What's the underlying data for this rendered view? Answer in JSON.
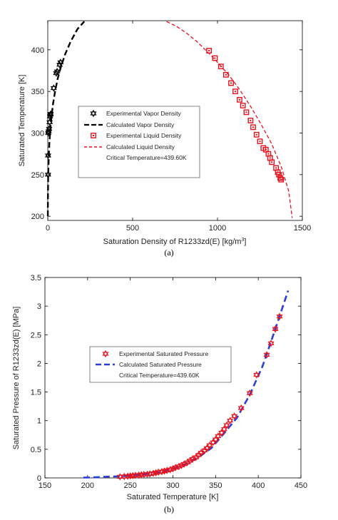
{
  "chart_data": [
    {
      "type": "scatter",
      "caption": "(a)",
      "xlabel": "Saturation Density of R1233zd(E) [kg/m",
      "xlabel_sup": "3",
      "xlabel_tail": "]",
      "ylabel": "Saturated Temperature [K]",
      "xlim": [
        0,
        1500
      ],
      "ylim": [
        195,
        435
      ],
      "xticks": [
        0,
        500,
        1000,
        1500
      ],
      "yticks": [
        200,
        250,
        300,
        350,
        400
      ],
      "legend_position": "center-left",
      "series": [
        {
          "name": "Experimental Vapor Density",
          "kind": "markers",
          "marker": "hexagram",
          "color": "#000000",
          "x": [
            1.5,
            2,
            3,
            5,
            8,
            11,
            13,
            15,
            17,
            35,
            50,
            55,
            70,
            75
          ],
          "y": [
            250,
            273,
            300,
            302,
            305,
            313,
            320,
            322,
            323,
            354,
            372,
            374,
            382,
            385
          ]
        },
        {
          "name": "Calculated Vapor Density",
          "kind": "line",
          "dash": "8 4",
          "color": "#000000",
          "x": [
            0.3,
            0.6,
            1.2,
            2.2,
            4,
            6.5,
            10,
            15,
            22,
            31,
            43,
            58,
            78,
            103,
            135,
            175,
            215
          ],
          "y": [
            200,
            215,
            230,
            245,
            260,
            275,
            290,
            305,
            320,
            335,
            350,
            365,
            380,
            395,
            410,
            425,
            434
          ]
        },
        {
          "name": "Experimental Liquid Density",
          "kind": "markers",
          "marker": "square",
          "color": "#e8111b",
          "x": [
            950,
            985,
            1020,
            1050,
            1080,
            1105,
            1130,
            1150,
            1170,
            1195,
            1210,
            1230,
            1250,
            1270,
            1285,
            1300,
            1310,
            1320,
            1345,
            1355,
            1362,
            1370,
            1375
          ],
          "y": [
            399,
            390,
            380,
            370,
            360,
            350,
            340,
            333,
            325,
            315,
            307,
            298,
            290,
            282,
            280,
            275,
            270,
            265,
            258,
            253,
            250,
            246,
            244
          ]
        },
        {
          "name": "Calculated Liquid Density",
          "kind": "line",
          "dash": "5 3",
          "color": "#e8111b",
          "x": [
            700,
            760,
            818,
            878,
            939,
            1000,
            1066,
            1131,
            1192,
            1253,
            1317,
            1375,
            1420,
            1440
          ],
          "y": [
            434,
            428,
            420,
            410,
            398,
            385,
            370,
            352,
            333,
            312,
            288,
            260,
            230,
            198
          ]
        }
      ],
      "annotation": "Critical Temperature=439.60K"
    },
    {
      "type": "scatter",
      "caption": "(b)",
      "xlabel": "Saturated Temperature [K]",
      "ylabel": "Saturated Pressure of R1233zd(E) [MPa]",
      "xlim": [
        150,
        450
      ],
      "ylim": [
        0,
        3.5
      ],
      "xticks": [
        150,
        200,
        250,
        300,
        350,
        400,
        450
      ],
      "yticks": [
        0,
        0.5,
        1,
        1.5,
        2,
        2.5,
        3,
        3.5
      ],
      "legend_position": "center",
      "series": [
        {
          "name": "Experimental Saturated Pressure",
          "kind": "markers",
          "marker": "hexagram",
          "color": "#e8111b",
          "x": [
            238,
            243,
            247,
            250,
            253,
            256,
            260,
            263,
            266,
            270,
            273,
            277,
            280,
            283,
            287,
            290,
            293,
            297,
            300,
            303,
            307,
            310,
            313,
            317,
            320,
            323,
            327,
            330,
            333,
            337,
            340,
            343,
            347,
            350,
            353,
            357,
            360,
            363,
            367,
            372,
            380,
            390,
            398,
            410,
            415,
            420,
            425
          ],
          "y": [
            0.02,
            0.025,
            0.03,
            0.035,
            0.04,
            0.045,
            0.05,
            0.055,
            0.06,
            0.065,
            0.07,
            0.08,
            0.09,
            0.1,
            0.11,
            0.12,
            0.13,
            0.145,
            0.16,
            0.18,
            0.2,
            0.22,
            0.24,
            0.27,
            0.3,
            0.33,
            0.36,
            0.4,
            0.44,
            0.48,
            0.52,
            0.57,
            0.62,
            0.67,
            0.73,
            0.79,
            0.85,
            0.92,
            1.0,
            1.08,
            1.22,
            1.48,
            1.8,
            2.15,
            2.35,
            2.6,
            2.82
          ]
        },
        {
          "name": "Calculated Saturated Pressure",
          "kind": "line",
          "dash": "9 5",
          "color": "#2a3fd8",
          "x": [
            195,
            210,
            225,
            240,
            255,
            270,
            285,
            300,
            315,
            330,
            345,
            360,
            375,
            390,
            405,
            420,
            435
          ],
          "y": [
            0.005,
            0.012,
            0.022,
            0.03,
            0.045,
            0.07,
            0.1,
            0.16,
            0.24,
            0.36,
            0.52,
            0.78,
            1.05,
            1.45,
            1.95,
            2.6,
            3.27
          ]
        }
      ],
      "annotation": "Critical Temperature=439.60K"
    }
  ]
}
